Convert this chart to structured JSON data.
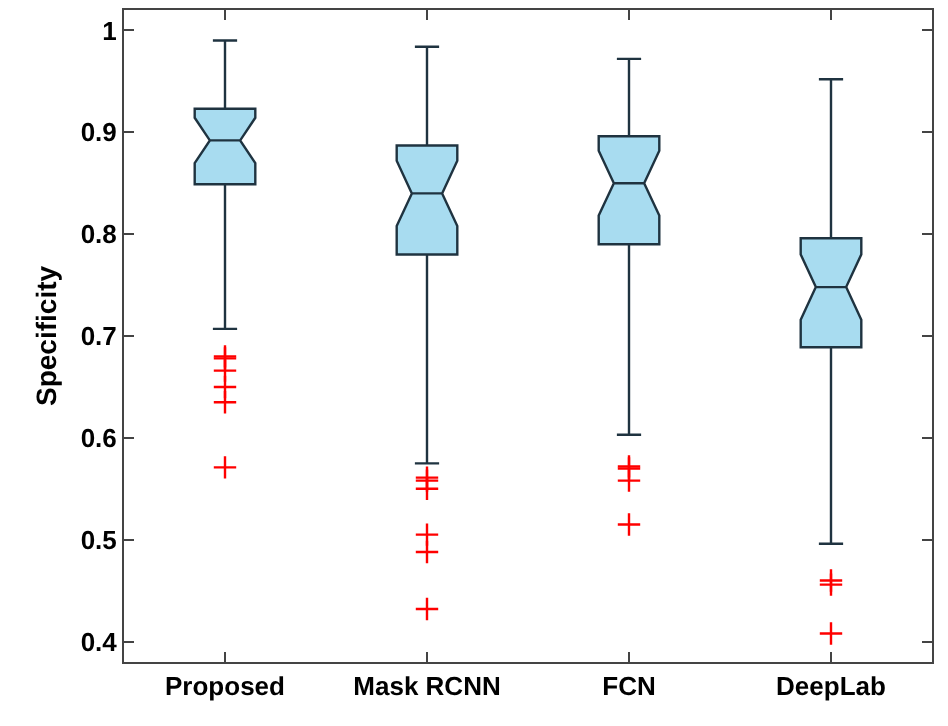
{
  "chart_data": {
    "type": "box",
    "ylabel": "Specificity",
    "categories": [
      "Proposed",
      "Mask RCNN",
      "FCN",
      "DeepLab"
    ],
    "ylim": [
      0.38,
      1.02
    ],
    "yticks": [
      {
        "value": 0.4,
        "label": "0.4"
      },
      {
        "value": 0.5,
        "label": "0.5"
      },
      {
        "value": 0.6,
        "label": "0.6"
      },
      {
        "value": 0.7,
        "label": "0.7"
      },
      {
        "value": 0.8,
        "label": "0.8"
      },
      {
        "value": 0.9,
        "label": "0.9"
      },
      {
        "value": 1,
        "label": "1"
      }
    ],
    "grid": false,
    "series": [
      {
        "color": "#a8dcf0",
        "boxes": [
          {
            "low": 0.707,
            "q1": 0.849,
            "median": 0.892,
            "q3": 0.923,
            "high": 0.99,
            "outliers": [
              0.68,
              0.678,
              0.666,
              0.65,
              0.635,
              0.571
            ]
          },
          {
            "low": 0.575,
            "q1": 0.78,
            "median": 0.84,
            "q3": 0.887,
            "high": 0.984,
            "outliers": [
              0.561,
              0.558,
              0.55,
              0.505,
              0.488,
              0.432
            ]
          },
          {
            "low": 0.603,
            "q1": 0.79,
            "median": 0.85,
            "q3": 0.896,
            "high": 0.972,
            "outliers": [
              0.572,
              0.57,
              0.558,
              0.515
            ]
          },
          {
            "low": 0.496,
            "q1": 0.689,
            "median": 0.748,
            "q3": 0.796,
            "high": 0.952,
            "outliers": [
              0.46,
              0.456,
              0.408
            ]
          }
        ]
      }
    ]
  }
}
